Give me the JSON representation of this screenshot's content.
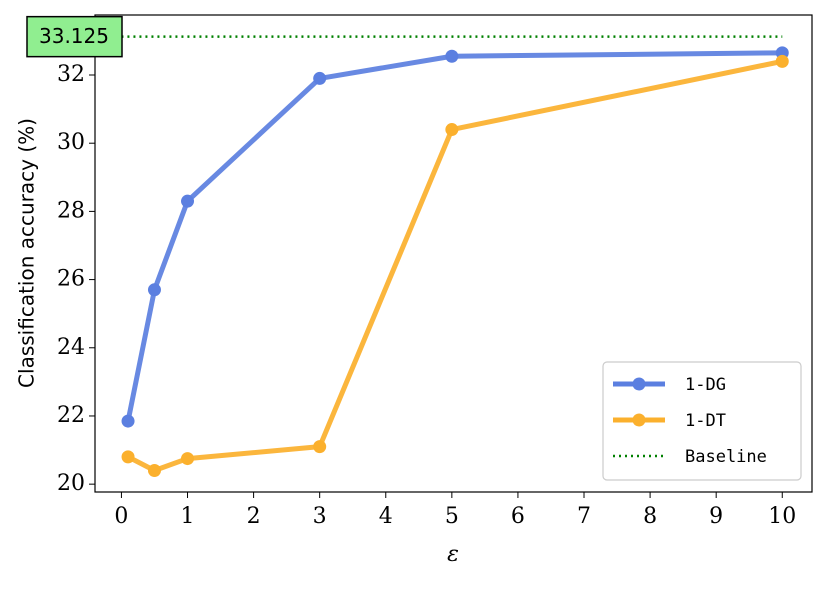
{
  "chart_data": {
    "type": "line",
    "xlabel": "ε",
    "ylabel": "Classification accuracy (%)",
    "x": [
      0.1,
      0.5,
      1,
      3,
      5,
      10
    ],
    "series": [
      {
        "name": "1-DG",
        "color": "#5b7fe0",
        "values": [
          21.85,
          25.7,
          28.3,
          31.9,
          32.55,
          32.65
        ]
      },
      {
        "name": "1-DT",
        "color": "#fbb02d",
        "values": [
          20.8,
          20.4,
          20.75,
          21.1,
          30.4,
          32.4
        ]
      }
    ],
    "baseline": {
      "name": "Baseline",
      "color": "#008000",
      "value": 33.125,
      "value_label": "33.125"
    },
    "xlim": [
      -0.4,
      10.45
    ],
    "ylim": [
      19.77,
      33.76
    ],
    "xticks": [
      0,
      1,
      2,
      3,
      4,
      5,
      6,
      7,
      8,
      9,
      10
    ],
    "yticks": [
      20,
      22,
      24,
      26,
      28,
      30,
      32
    ],
    "legend": "lower right"
  }
}
